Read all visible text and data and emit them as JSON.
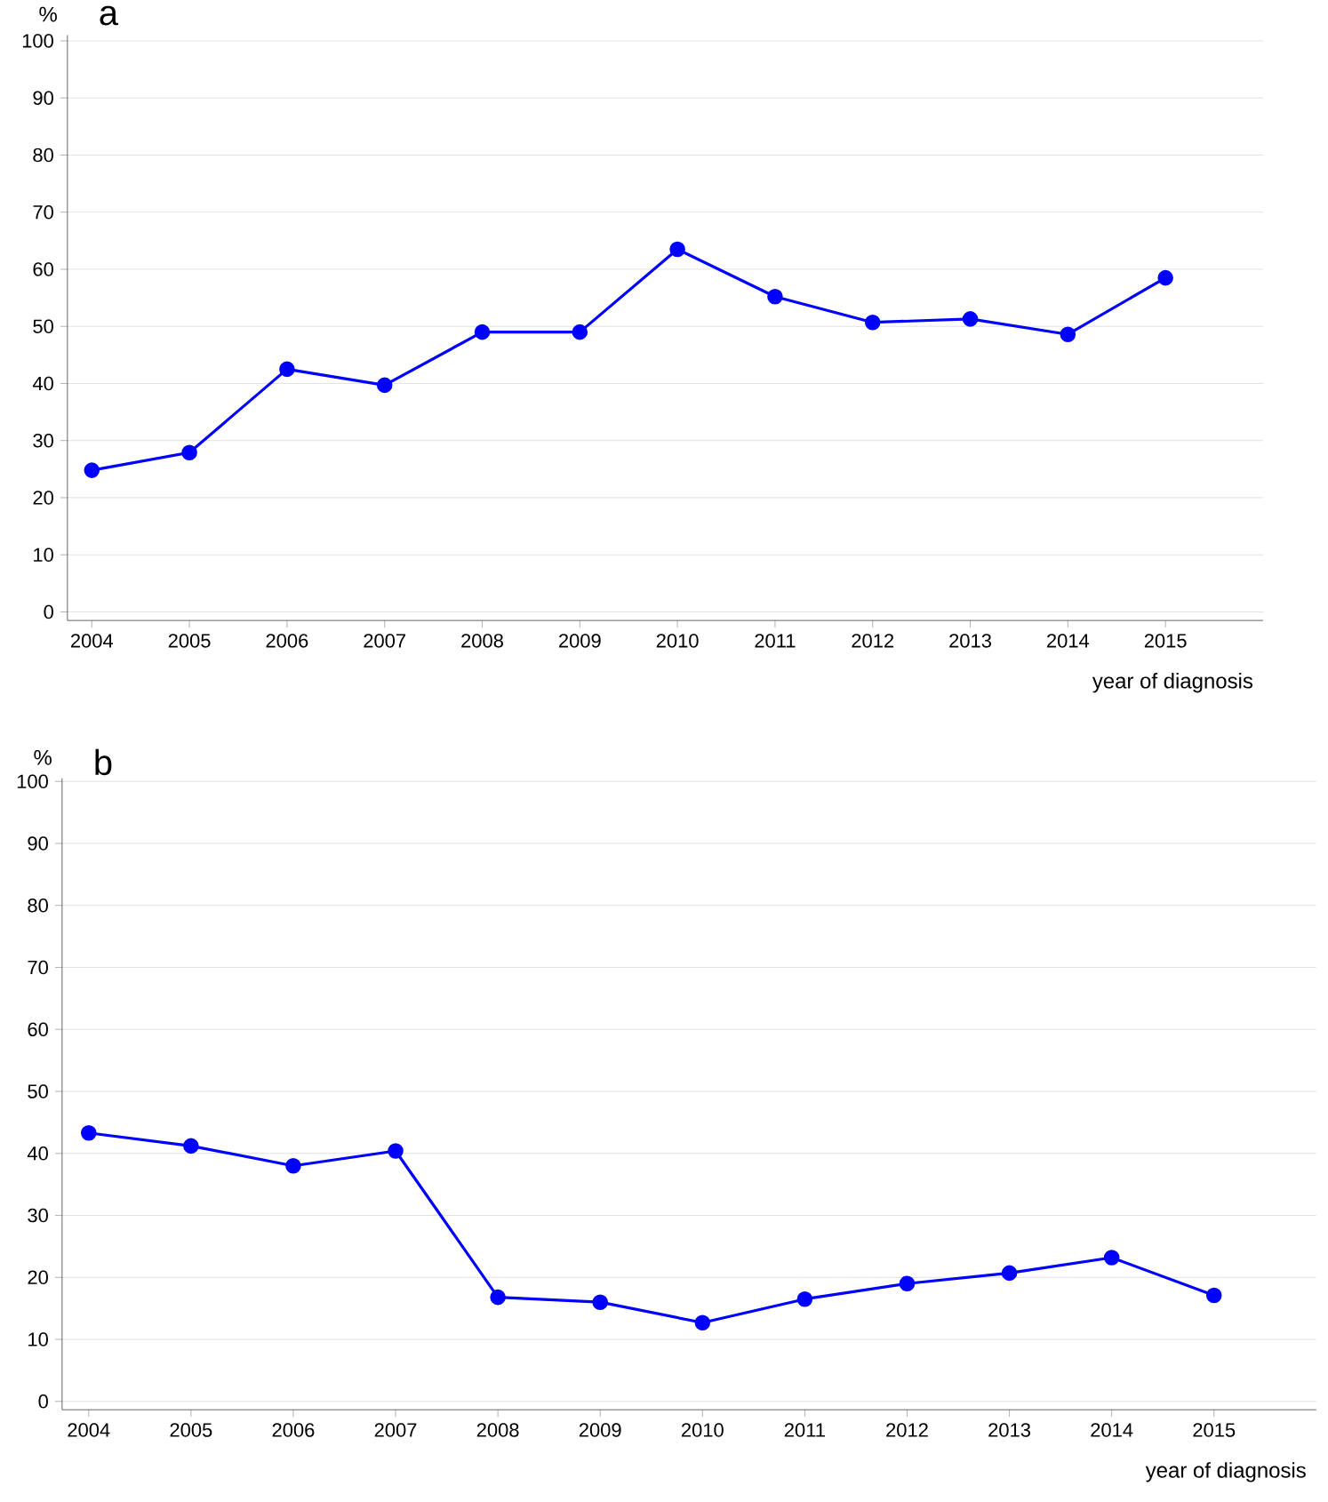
{
  "chart_data": [
    {
      "type": "line",
      "title": "a",
      "ylabel": "%",
      "xlabel": "year of diagnosis",
      "x": [
        2004,
        2005,
        2006,
        2007,
        2008,
        2009,
        2010,
        2011,
        2012,
        2013,
        2014,
        2015
      ],
      "values": [
        24.8,
        27.9,
        42.5,
        39.7,
        49,
        49,
        63.5,
        55.2,
        50.7,
        51.3,
        48.6,
        58.5
      ],
      "color": "#0000ff",
      "marker": "circle",
      "grid": "y",
      "xlim": [
        2003.75,
        2016.0
      ],
      "ylim": [
        -1.5,
        101
      ],
      "xticks": [
        2004,
        2005,
        2006,
        2007,
        2008,
        2009,
        2010,
        2011,
        2012,
        2013,
        2014,
        2015
      ],
      "yticks": [
        0,
        10,
        20,
        30,
        40,
        50,
        60,
        70,
        80,
        90,
        100
      ]
    },
    {
      "type": "line",
      "title": "b",
      "ylabel": "%",
      "xlabel": "year of diagnosis",
      "x": [
        2004,
        2005,
        2006,
        2007,
        2008,
        2009,
        2010,
        2011,
        2012,
        2013,
        2014,
        2015
      ],
      "values": [
        43.3,
        41.2,
        38,
        40.4,
        16.8,
        16,
        12.7,
        16.5,
        19,
        20.7,
        23.2,
        17.1
      ],
      "color": "#0000ff",
      "marker": "circle",
      "grid": "y",
      "xlim": [
        2003.74,
        2016.0
      ],
      "ylim": [
        -1.35,
        100.5
      ],
      "xticks": [
        2004,
        2005,
        2006,
        2007,
        2008,
        2009,
        2010,
        2011,
        2012,
        2013,
        2014,
        2015
      ],
      "yticks": [
        0,
        10,
        20,
        30,
        40,
        50,
        60,
        70,
        80,
        90,
        100
      ]
    }
  ]
}
